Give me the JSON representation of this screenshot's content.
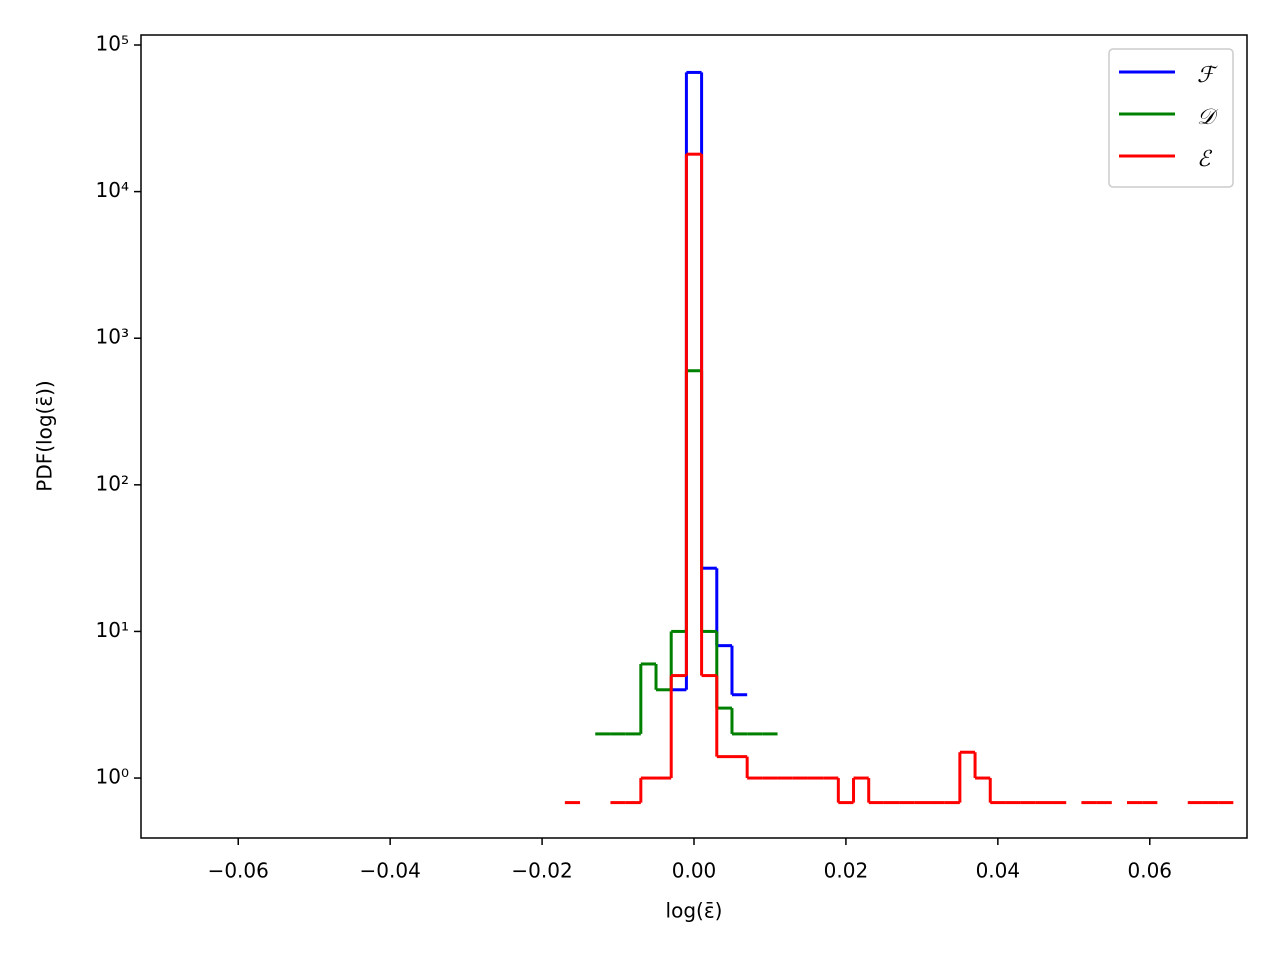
{
  "chart_data": {
    "type": "step-histogram",
    "xlabel": "log(ε̄)",
    "ylabel": "PDF(log(ε̄))",
    "xlim": [
      -0.0728,
      0.0728
    ],
    "ylim": [
      0.39,
      117000
    ],
    "yscale": "log",
    "xticks": [
      {
        "value": -0.06,
        "label": "−0.06"
      },
      {
        "value": -0.04,
        "label": "−0.04"
      },
      {
        "value": -0.02,
        "label": "−0.02"
      },
      {
        "value": 0,
        "label": "0.00"
      },
      0.02,
      0.04,
      0.06
    ],
    "yticks": [
      {
        "value": 1,
        "label": "10⁰"
      },
      {
        "value": 10,
        "label": "10¹"
      },
      {
        "value": 100,
        "label": "10²"
      },
      {
        "value": 1000,
        "label": "10³"
      },
      {
        "value": 10000,
        "label": "10⁴"
      },
      {
        "value": 100000,
        "label": "10⁵"
      }
    ],
    "legend": "upper right",
    "bins": [
      -0.017,
      -0.015,
      -0.013,
      -0.011,
      -0.009,
      -0.007,
      -0.005,
      -0.003,
      -0.001,
      0.001,
      0.003,
      0.005,
      0.007,
      0.009,
      0.011,
      0.013,
      0.015,
      0.017,
      0.019,
      0.021,
      0.023,
      0.025,
      0.027,
      0.029,
      0.031,
      0.033,
      0.035,
      0.037,
      0.039,
      0.041,
      0.043,
      0.045,
      0.047,
      0.049,
      0.051,
      0.053,
      0.055,
      0.057,
      0.059,
      0.061,
      0.063,
      0.065,
      0.067,
      0.069,
      0.071
    ],
    "series": [
      {
        "name": "ℱ",
        "color": "#0000ff",
        "values": [
          null,
          null,
          null,
          null,
          null,
          null,
          null,
          4,
          65000,
          27,
          8,
          3.7,
          null,
          null,
          null,
          null,
          null,
          null,
          null,
          null,
          null,
          null,
          null,
          null,
          null,
          null,
          null,
          null,
          null,
          null,
          null,
          null,
          null,
          null,
          null,
          null,
          null,
          null,
          null,
          null,
          null,
          null,
          null,
          null
        ]
      },
      {
        "name": "𝒟",
        "color": "#008000",
        "values": [
          null,
          null,
          2,
          2,
          2,
          6,
          4,
          10,
          600,
          10,
          3,
          2,
          2,
          2,
          null,
          null,
          null,
          null,
          null,
          null,
          null,
          null,
          null,
          null,
          null,
          null,
          null,
          null,
          null,
          null,
          null,
          null,
          null,
          null,
          null,
          null,
          null,
          null,
          null,
          null,
          null,
          null,
          null,
          null
        ]
      },
      {
        "name": "ℰ",
        "color": "#ff0000",
        "values": [
          0.68,
          null,
          null,
          0.68,
          0.68,
          1,
          1,
          5,
          18000,
          5,
          1.4,
          1.4,
          1,
          1,
          1,
          1,
          1,
          1,
          0.68,
          1,
          0.68,
          0.68,
          0.68,
          0.68,
          0.68,
          0.68,
          1.5,
          1,
          0.68,
          0.68,
          0.68,
          0.68,
          0.68,
          null,
          0.68,
          0.68,
          null,
          0.68,
          0.68,
          null,
          null,
          0.68,
          0.68,
          0.68
        ]
      }
    ]
  }
}
